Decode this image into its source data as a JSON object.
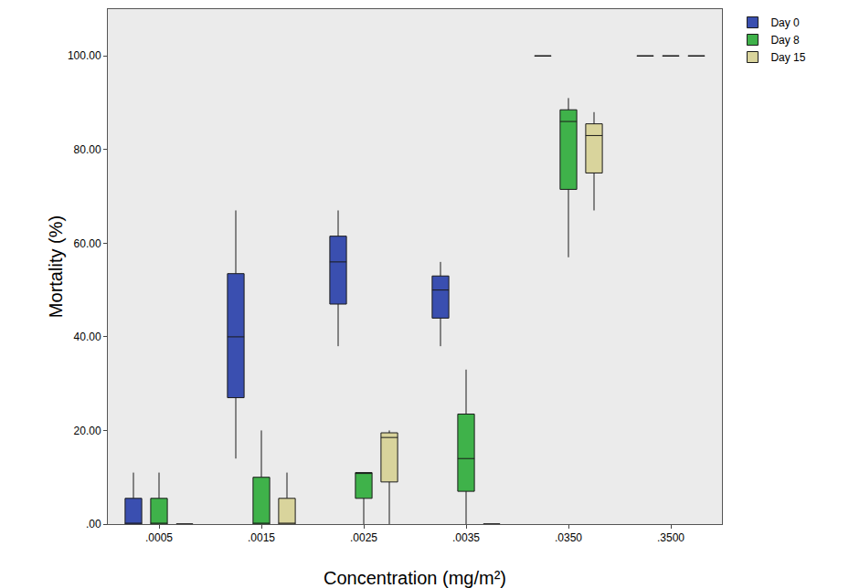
{
  "chart_data": {
    "type": "box",
    "x_label": "Concentration (mg/m²)",
    "y_label": "Mortality (%)",
    "categories": [
      ".0005",
      ".0015",
      ".0025",
      ".0035",
      ".0350",
      ".3500"
    ],
    "series": [
      {
        "name": "Day 0",
        "color": "#3a4fb0",
        "min": [
          0,
          14,
          38,
          38,
          100,
          100
        ],
        "q1": [
          0,
          27,
          47,
          44,
          100,
          100
        ],
        "median": [
          0,
          40,
          56,
          50,
          100,
          100
        ],
        "q3": [
          5.5,
          53.5,
          61.5,
          53,
          100,
          100
        ],
        "max": [
          11,
          67,
          67,
          56,
          100,
          100
        ]
      },
      {
        "name": "Day 8",
        "color": "#3fb24a",
        "min": [
          0,
          0,
          0,
          0,
          57,
          100
        ],
        "q1": [
          0,
          0,
          5.5,
          7,
          71.5,
          100
        ],
        "median": [
          0,
          0,
          11,
          14,
          86,
          100
        ],
        "q3": [
          5.5,
          10,
          11,
          23.5,
          88.5,
          100
        ],
        "max": [
          11,
          20,
          11,
          33,
          91,
          100
        ]
      },
      {
        "name": "Day 15",
        "color": "#d9d49c",
        "min": [
          0,
          0,
          0,
          0,
          67,
          100
        ],
        "q1": [
          0,
          0,
          9,
          0,
          75,
          100
        ],
        "median": [
          0,
          0,
          18.5,
          0,
          83,
          100
        ],
        "q3": [
          0,
          5.5,
          19.5,
          0,
          85.5,
          100
        ],
        "max": [
          0,
          11,
          20,
          0,
          88,
          100
        ]
      }
    ],
    "ylim": [
      0,
      110
    ],
    "yticks": [
      {
        "value": 0,
        "label": ".00"
      },
      {
        "value": 20,
        "label": "20.00"
      },
      {
        "value": 40,
        "label": "40.00"
      },
      {
        "value": 60,
        "label": "60.00"
      },
      {
        "value": 80,
        "label": "80.00"
      },
      {
        "value": 100,
        "label": "100.00"
      }
    ],
    "grid": false,
    "legend": "right"
  }
}
